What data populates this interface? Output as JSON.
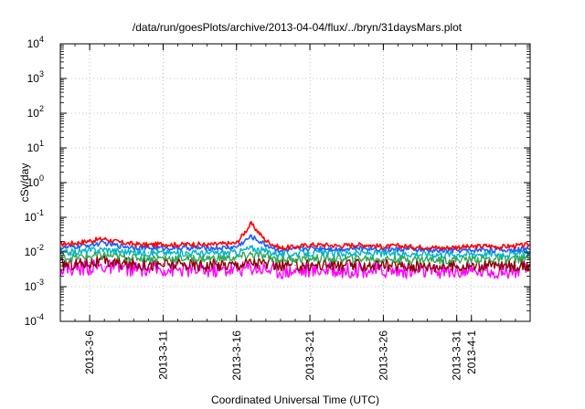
{
  "chart_data": {
    "type": "line",
    "title": "/data/run/goesPlots/archive/2013-04-04/flux/../bryn/31daysMars.plot",
    "xlabel": "Coordinated Universal Time (UTC)",
    "ylabel": "cSv/day",
    "yscale": "log",
    "ylim": [
      0.0001,
      10000
    ],
    "xlim": [
      "2013-03-04",
      "2013-04-05"
    ],
    "y_ticks": [
      {
        "base": "10",
        "exp": "-4"
      },
      {
        "base": "10",
        "exp": "-3"
      },
      {
        "base": "10",
        "exp": "-2"
      },
      {
        "base": "10",
        "exp": "-1"
      },
      {
        "base": "10",
        "exp": "0"
      },
      {
        "base": "10",
        "exp": "1"
      },
      {
        "base": "10",
        "exp": "2"
      },
      {
        "base": "10",
        "exp": "3"
      },
      {
        "base": "10",
        "exp": "4"
      }
    ],
    "x_ticks": [
      {
        "label": "2013-3-6",
        "date": "2013-03-06"
      },
      {
        "label": "2013-3-11",
        "date": "2013-03-11"
      },
      {
        "label": "2013-3-16",
        "date": "2013-03-16"
      },
      {
        "label": "2013-3-21",
        "date": "2013-03-21"
      },
      {
        "label": "2013-3-26",
        "date": "2013-03-26"
      },
      {
        "label": "2013-3-31",
        "date": "2013-03-31"
      },
      {
        "label": "2013-4-1",
        "date": "2013-04-01"
      }
    ],
    "grid": true,
    "x": [
      "2013-03-04",
      "2013-03-05",
      "2013-03-06",
      "2013-03-07",
      "2013-03-08",
      "2013-03-09",
      "2013-03-10",
      "2013-03-11",
      "2013-03-12",
      "2013-03-13",
      "2013-03-14",
      "2013-03-15",
      "2013-03-16",
      "2013-03-17",
      "2013-03-18",
      "2013-03-19",
      "2013-03-20",
      "2013-03-21",
      "2013-03-22",
      "2013-03-23",
      "2013-03-24",
      "2013-03-25",
      "2013-03-26",
      "2013-03-27",
      "2013-03-28",
      "2013-03-29",
      "2013-03-30",
      "2013-03-31",
      "2013-04-01",
      "2013-04-02",
      "2013-04-03",
      "2013-04-04",
      "2013-04-05"
    ],
    "series": [
      {
        "color": "#ff0000",
        "values": [
          0.017,
          0.018,
          0.021,
          0.024,
          0.019,
          0.017,
          0.016,
          0.017,
          0.016,
          0.017,
          0.016,
          0.017,
          0.018,
          0.065,
          0.021,
          0.013,
          0.014,
          0.016,
          0.016,
          0.015,
          0.016,
          0.016,
          0.014,
          0.015,
          0.014,
          0.014,
          0.013,
          0.014,
          0.014,
          0.015,
          0.014,
          0.015,
          0.016
        ]
      },
      {
        "color": "#1f5fff",
        "values": [
          0.013,
          0.014,
          0.016,
          0.018,
          0.015,
          0.014,
          0.013,
          0.013,
          0.013,
          0.013,
          0.013,
          0.013,
          0.014,
          0.028,
          0.016,
          0.011,
          0.012,
          0.013,
          0.013,
          0.012,
          0.013,
          0.013,
          0.012,
          0.012,
          0.012,
          0.011,
          0.011,
          0.011,
          0.011,
          0.012,
          0.011,
          0.012,
          0.012
        ]
      },
      {
        "color": "#00b4c8",
        "values": [
          0.0095,
          0.01,
          0.011,
          0.012,
          0.0105,
          0.0098,
          0.0094,
          0.0096,
          0.0093,
          0.0094,
          0.0092,
          0.0094,
          0.0097,
          0.013,
          0.0105,
          0.0088,
          0.009,
          0.0093,
          0.0094,
          0.0091,
          0.0093,
          0.0093,
          0.009,
          0.009,
          0.0089,
          0.0087,
          0.0086,
          0.0087,
          0.0088,
          0.009,
          0.0088,
          0.009,
          0.0092
        ]
      },
      {
        "color": "#2eaa55",
        "values": [
          0.0068,
          0.007,
          0.0075,
          0.008,
          0.0072,
          0.0069,
          0.0066,
          0.0067,
          0.0065,
          0.0066,
          0.0065,
          0.0066,
          0.0068,
          0.0085,
          0.0072,
          0.0062,
          0.0063,
          0.0065,
          0.0066,
          0.0064,
          0.0065,
          0.0065,
          0.0063,
          0.0063,
          0.0062,
          0.0061,
          0.006,
          0.0061,
          0.0062,
          0.0063,
          0.0062,
          0.0063,
          0.0064
        ]
      },
      {
        "color": "#8b0000",
        "values": [
          0.0045,
          0.0046,
          0.0049,
          0.0052,
          0.0047,
          0.0045,
          0.0043,
          0.0044,
          0.0043,
          0.0043,
          0.0042,
          0.0043,
          0.0044,
          0.0052,
          0.0046,
          0.004,
          0.0041,
          0.0042,
          0.0043,
          0.0041,
          0.0042,
          0.0042,
          0.0041,
          0.0041,
          0.004,
          0.004,
          0.0039,
          0.004,
          0.004,
          0.0041,
          0.004,
          0.0041,
          0.0042
        ]
      },
      {
        "color": "#ff00ff",
        "values": [
          0.0033,
          0.0034,
          0.0036,
          0.0038,
          0.0034,
          0.0033,
          0.0031,
          0.0032,
          0.0031,
          0.0031,
          0.003,
          0.0031,
          0.0032,
          0.0036,
          0.0033,
          0.0028,
          0.0029,
          0.003,
          0.0031,
          0.0029,
          0.003,
          0.003,
          0.0029,
          0.0029,
          0.0028,
          0.0028,
          0.0027,
          0.0028,
          0.0028,
          0.0029,
          0.0028,
          0.0029,
          0.003
        ]
      }
    ]
  }
}
